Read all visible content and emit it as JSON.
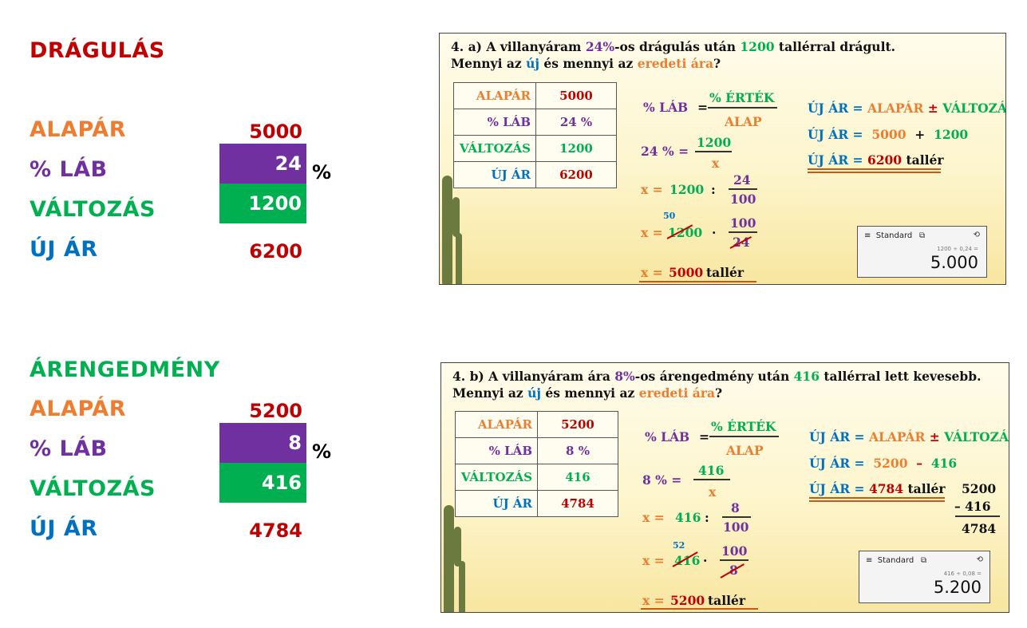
{
  "colors": {
    "red": "#c00000",
    "orange": "#ed7d31",
    "purple": "#7030a0",
    "green": "#00b050",
    "blue": "#0070c0",
    "black": "#000000"
  },
  "left_top": {
    "heading": "DRÁGULÁS",
    "rows": [
      {
        "label": "ALAPÁR",
        "value": "5000"
      },
      {
        "label": "% LÁB",
        "value": "24",
        "suffix": "%"
      },
      {
        "label": "VÁLTOZÁS",
        "value": "1200"
      },
      {
        "label": "ÚJ ÁR",
        "value": "6200"
      }
    ]
  },
  "left_bottom": {
    "heading": "ÁRENGEDMÉNY",
    "rows": [
      {
        "label": "ALAPÁR",
        "value": "5200"
      },
      {
        "label": "% LÁB",
        "value": "8",
        "suffix": "%"
      },
      {
        "label": "VÁLTOZÁS",
        "value": "416"
      },
      {
        "label": "ÚJ ÁR",
        "value": "4784"
      }
    ]
  },
  "panel_a": {
    "q1_prefix": "4. a) A villanyáram ",
    "q1_pct": "24%",
    "q1_mid": "-os drágulás után ",
    "q1_amount": "1200",
    "q1_suffix": " tallérral drágult.",
    "q2_prefix": "Mennyi az ",
    "q2_new": "új",
    "q2_mid": " és mennyi az ",
    "q2_orig": "eredeti ára",
    "q2_suffix": "?",
    "table": [
      {
        "label": "ALAPÁR",
        "value": "5000"
      },
      {
        "label": "% LÁB",
        "value": "24 %"
      },
      {
        "label": "VÁLTOZÁS",
        "value": "1200"
      },
      {
        "label": "ÚJ ÁR",
        "value": "6200"
      }
    ],
    "f_lab": "% LÁB",
    "f_eq": "=",
    "f_num": "% ÉRTÉK",
    "f_den": "ALAP",
    "e1_left": "24 % =",
    "e1_num": "1200",
    "e1_den": "x",
    "e2_x": "x =",
    "e2_a": "1200",
    "e2_op": ":",
    "e2_num": "24",
    "e2_den": "100",
    "e3_x": "x =",
    "e3_small": "50",
    "e3_a": "1200",
    "e3_op": "·",
    "e3_num": "100",
    "e3_den": "24",
    "res_x": "x =",
    "res_val": "5000",
    "res_unit": "tallér",
    "r1_new": "ÚJ ÁR =",
    "r1_base": "ALAPÁR",
    "r1_pm": "±",
    "r1_chg": "VÁLTOZÁS",
    "r2_new": "ÚJ ÁR =",
    "r2_a": "5000",
    "r2_op": "+",
    "r2_b": "1200",
    "r3_new": "ÚJ ÁR =",
    "r3_val": "6200",
    "r3_unit": "tallér",
    "calc_mode": "Standard",
    "calc_expr": "1200 ÷ 0,24 =",
    "calc_result": "5.000"
  },
  "panel_b": {
    "q1_prefix": "4. b) A villanyáram ára ",
    "q1_pct": "8%",
    "q1_mid": "-os árengedmény után ",
    "q1_amount": "416",
    "q1_suffix": " tallérral lett kevesebb.",
    "q2_prefix": "Mennyi az ",
    "q2_new": "új",
    "q2_mid": " és mennyi az ",
    "q2_orig": "eredeti ára",
    "q2_suffix": "?",
    "table": [
      {
        "label": "ALAPÁR",
        "value": "5200"
      },
      {
        "label": "% LÁB",
        "value": "8 %"
      },
      {
        "label": "VÁLTOZÁS",
        "value": "416"
      },
      {
        "label": "ÚJ ÁR",
        "value": "4784"
      }
    ],
    "f_lab": "% LÁB",
    "f_eq": "=",
    "f_num": "% ÉRTÉK",
    "f_den": "ALAP",
    "e1_left": "8 % =",
    "e1_num": "416",
    "e1_den": "x",
    "e2_x": "x =",
    "e2_a": "416",
    "e2_op": ":",
    "e2_num": "8",
    "e2_den": "100",
    "e3_x": "x =",
    "e3_small": "52",
    "e3_a": "416",
    "e3_op": "·",
    "e3_num": "100",
    "e3_den": "8",
    "res_x": "x =",
    "res_val": "5200",
    "res_unit": "tallér",
    "r1_new": "ÚJ ÁR =",
    "r1_base": "ALAPÁR",
    "r1_pm": "±",
    "r1_chg": "VÁLTOZÁS",
    "r2_new": "ÚJ ÁR =",
    "r2_a": "5200",
    "r2_op": "–",
    "r2_b": "416",
    "r3_new": "ÚJ ÁR =",
    "r3_val": "4784",
    "r3_unit": "tallér",
    "sub_a": "5200",
    "sub_b": "– 416",
    "sub_r": "4784",
    "calc_mode": "Standard",
    "calc_expr": "416 ÷ 0,08 =",
    "calc_result": "5.200"
  }
}
